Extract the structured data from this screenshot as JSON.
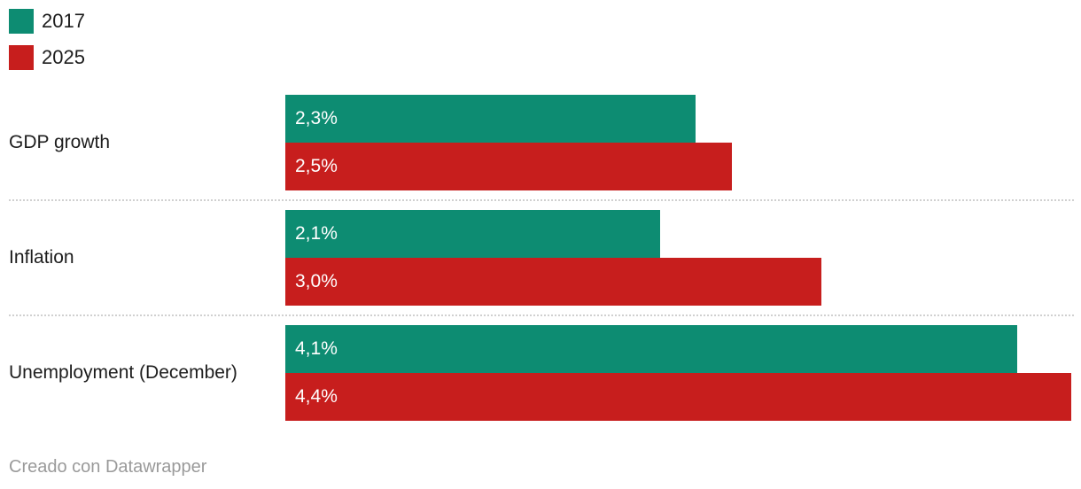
{
  "legend": {
    "items": [
      {
        "label": "2017",
        "color": "#0d8c72"
      },
      {
        "label": "2025",
        "color": "#c71e1d"
      }
    ]
  },
  "footer": {
    "text": "Creado con Datawrapper"
  },
  "chart_data": {
    "type": "bar",
    "orientation": "horizontal",
    "title": "",
    "categories": [
      "GDP growth",
      "Inflation",
      "Unemployment (December)"
    ],
    "series": [
      {
        "name": "2017",
        "color": "#0d8c72",
        "values": [
          2.3,
          2.1,
          4.1
        ],
        "value_labels": [
          "2,3%",
          "2,1%",
          "4,1%"
        ]
      },
      {
        "name": "2025",
        "color": "#c71e1d",
        "values": [
          2.5,
          3.0,
          4.4
        ],
        "value_labels": [
          "2,5%",
          "3,0%",
          "4,4%"
        ]
      }
    ],
    "unit": "%",
    "decimal_separator": ",",
    "xlim": [
      0,
      4.46
    ],
    "grid": false,
    "value_labels_position": "inside-start",
    "legend_position": "top-left",
    "attribution": "Creado con Datawrapper"
  }
}
